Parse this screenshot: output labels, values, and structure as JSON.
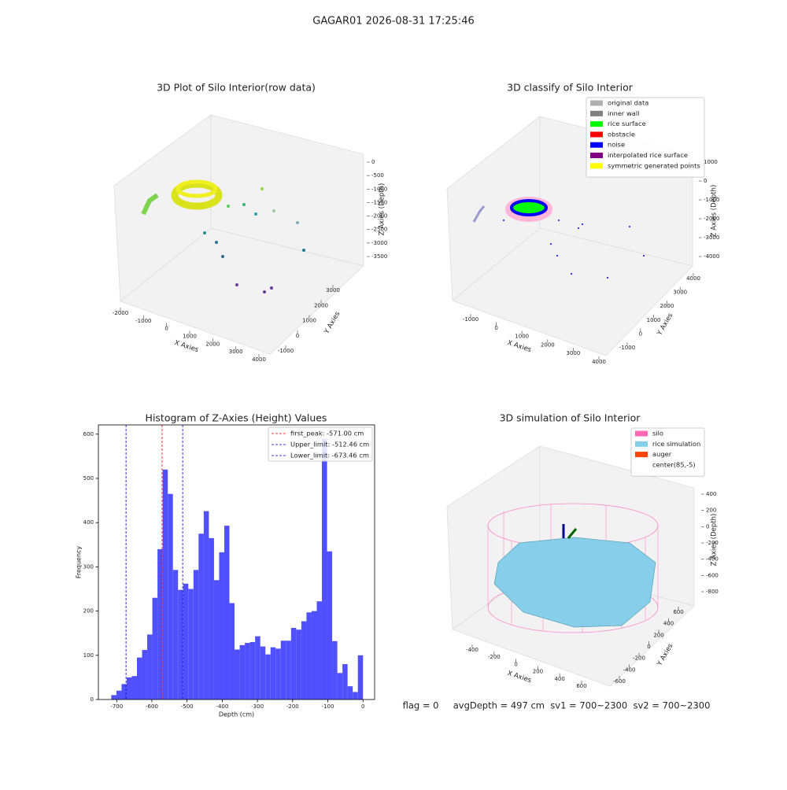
{
  "title": "GAGAR01 2026-08-31 17:25:46",
  "footer": "flag = 0     avgDepth = 497 cm  sv1 = 700~2300  sv2 = 700~2300",
  "chart_data": [
    {
      "type": "scatter3d",
      "title": "3D Plot of Silo Interior(row data)",
      "xlabel": "X Axies",
      "ylabel": "Y Axies",
      "zlabel": "Z Axies (Depth)",
      "xticks": [
        -2000,
        -1000,
        0,
        1000,
        2000,
        3000,
        4000
      ],
      "yticks": [
        -1000,
        0,
        1000,
        2000,
        3000
      ],
      "zticks": [
        0,
        -500,
        -1000,
        -1500,
        -2000,
        -2500,
        -3000,
        -3500
      ]
    },
    {
      "type": "scatter3d",
      "title": "3D classify of Silo Interior",
      "xlabel": "X Axies",
      "ylabel": "Y Axies",
      "zlabel": "Z Axies (Depth)",
      "xticks": [
        -1000,
        0,
        1000,
        2000,
        3000,
        4000
      ],
      "yticks": [
        -1000,
        0,
        1000,
        2000,
        3000,
        4000
      ],
      "zticks": [
        1000,
        0,
        -1000,
        -2000,
        -3000,
        -4000
      ],
      "legend": [
        {
          "name": "original data",
          "color": "#b0b0b0"
        },
        {
          "name": "inner wall",
          "color": "#808080"
        },
        {
          "name": "rice surface",
          "color": "#00ff00"
        },
        {
          "name": "obstacle",
          "color": "#ff0000"
        },
        {
          "name": "noise",
          "color": "#0000ff"
        },
        {
          "name": "interpolated rice surface",
          "color": "#800080"
        },
        {
          "name": "symmetric generated points",
          "color": "#ffff00"
        }
      ]
    },
    {
      "type": "histogram",
      "title": "Histogram of Z-Axies (Height) Values",
      "xlabel": "Depth (cm)",
      "ylabel": "Frequency",
      "color": "#5050ff",
      "bins": [
        -715.4,
        -700.8,
        -686.2,
        -671.6,
        -657.0,
        -642.4,
        -627.8,
        -613.2,
        -598.6,
        -584.0,
        -569.4,
        -554.8,
        -540.2,
        -525.6,
        -511.0,
        -496.4,
        -481.8,
        -467.2,
        -452.6,
        -438.0,
        -423.4,
        -408.8,
        -394.2,
        -379.6,
        -365.0,
        -350.4,
        -335.8,
        -321.2,
        -306.6,
        -292.0,
        -277.4,
        -262.8,
        -248.2,
        -233.6,
        -219.0,
        -204.4,
        -189.8,
        -175.2,
        -160.6,
        -146.0,
        -131.4,
        -116.8,
        -102.2,
        -87.6,
        -73.0,
        -58.4,
        -43.8,
        -29.2,
        -14.6,
        0
      ],
      "values": [
        10,
        20,
        35,
        50,
        53,
        95,
        112,
        147,
        230,
        340,
        520,
        465,
        293,
        248,
        262,
        250,
        293,
        375,
        426,
        365,
        270,
        333,
        393,
        218,
        113,
        123,
        128,
        130,
        143,
        120,
        102,
        118,
        115,
        133,
        133,
        162,
        158,
        177,
        197,
        200,
        222,
        590,
        335,
        132,
        60,
        80,
        30,
        17,
        100
      ],
      "xlim": [
        -752,
        33
      ],
      "ylim": [
        0,
        621
      ],
      "xticks": [
        -700,
        -600,
        -500,
        -400,
        -300,
        -200,
        -100,
        0
      ],
      "yticks": [
        0,
        100,
        200,
        300,
        400,
        500,
        600
      ],
      "vlines": [
        {
          "name": "first_peak: -571.00 cm",
          "value": -571.0,
          "color": "#ff0000"
        },
        {
          "name": "Upper_limit: -512.46 cm",
          "value": -512.46,
          "color": "#0000cc"
        },
        {
          "name": "Lower_limit: -673.46 cm",
          "value": -673.46,
          "color": "#0000cc"
        }
      ],
      "legend_position": "upper right"
    },
    {
      "type": "surface3d",
      "title": "3D simulation of Silo Interior",
      "xlabel": "X Axies",
      "ylabel": "Y Axies",
      "zlabel": "Z Axies (Depth)",
      "xticks": [
        -400,
        -200,
        0,
        200,
        400,
        600
      ],
      "yticks": [
        -600,
        -400,
        -200,
        0,
        200,
        400,
        600
      ],
      "zticks": [
        400,
        200,
        0,
        -200,
        -400,
        -600,
        -800
      ],
      "legend": [
        {
          "name": "silo",
          "color": "#ff69b4"
        },
        {
          "name": "rice simulation",
          "color": "#87ceeb"
        },
        {
          "name": "auger",
          "color": "#ff4500"
        },
        {
          "name": "center(85,-5)",
          "color": "#ffffff"
        }
      ]
    }
  ]
}
